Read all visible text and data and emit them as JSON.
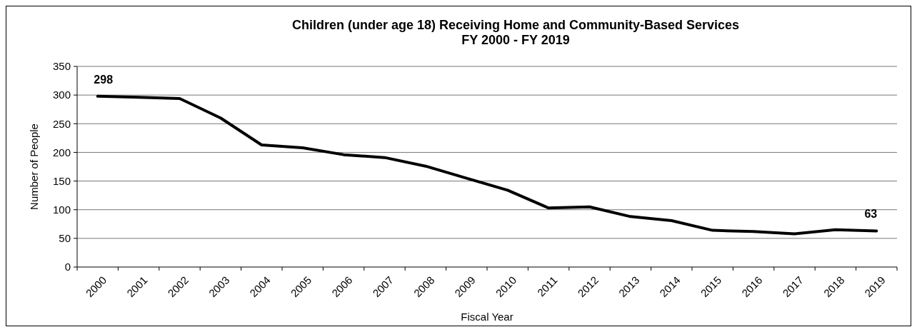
{
  "chart_data": {
    "type": "line",
    "title": "Children (under age 18) Receiving Home and Community-Based Services\nFY 2000 - FY 2019",
    "xlabel": "Fiscal Year",
    "ylabel": "Number of People",
    "categories": [
      "2000",
      "2001",
      "2002",
      "2003",
      "2004",
      "2005",
      "2006",
      "2007",
      "2008",
      "2009",
      "2010",
      "2011",
      "2012",
      "2013",
      "2014",
      "2015",
      "2016",
      "2017",
      "2018",
      "2019"
    ],
    "series": [
      {
        "color": "#000000",
        "values": [
          298,
          296,
          294,
          260,
          213,
          208,
          196,
          191,
          176,
          155,
          134,
          103,
          105,
          88,
          81,
          64,
          62,
          58,
          65,
          63
        ],
        "value_labels": [
          "298",
          null,
          null,
          null,
          null,
          null,
          null,
          null,
          null,
          null,
          null,
          null,
          null,
          null,
          null,
          null,
          null,
          null,
          null,
          "63"
        ]
      }
    ],
    "ylim": [
      0,
      350
    ],
    "yticks": [
      0,
      50,
      100,
      150,
      200,
      250,
      300,
      350
    ],
    "grid": "y",
    "marker": "none",
    "line_style": "solid"
  }
}
